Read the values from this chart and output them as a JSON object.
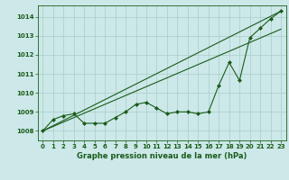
{
  "title": "Graphe pression niveau de la mer (hPa)",
  "bg_color": "#cce8e8",
  "grid_color": "#aacccc",
  "line_color": "#1a5c1a",
  "marker_color": "#1a5c1a",
  "xlim": [
    -0.5,
    23.5
  ],
  "ylim": [
    1007.5,
    1014.6
  ],
  "xticks": [
    0,
    1,
    2,
    3,
    4,
    5,
    6,
    7,
    8,
    9,
    10,
    11,
    12,
    13,
    14,
    15,
    16,
    17,
    18,
    19,
    20,
    21,
    22,
    23
  ],
  "yticks": [
    1008,
    1009,
    1010,
    1011,
    1012,
    1013,
    1014
  ],
  "series1_x": [
    0,
    1,
    2,
    3,
    4,
    5,
    6,
    7,
    8,
    9,
    10,
    11,
    12,
    13,
    14,
    15,
    16,
    17,
    18,
    19,
    20,
    21,
    22,
    23
  ],
  "series1_y": [
    1008.0,
    1008.6,
    1008.8,
    1008.9,
    1008.4,
    1008.4,
    1008.4,
    1008.7,
    1009.0,
    1009.4,
    1009.5,
    1009.2,
    1008.9,
    1009.0,
    1009.0,
    1008.9,
    1009.0,
    1010.4,
    1011.6,
    1010.65,
    1012.9,
    1013.4,
    1013.9,
    1014.3
  ],
  "series2_x": [
    0,
    23
  ],
  "series2_y": [
    1008.0,
    1014.3
  ],
  "series3_x": [
    0,
    23
  ],
  "series3_y": [
    1008.0,
    1013.35
  ]
}
